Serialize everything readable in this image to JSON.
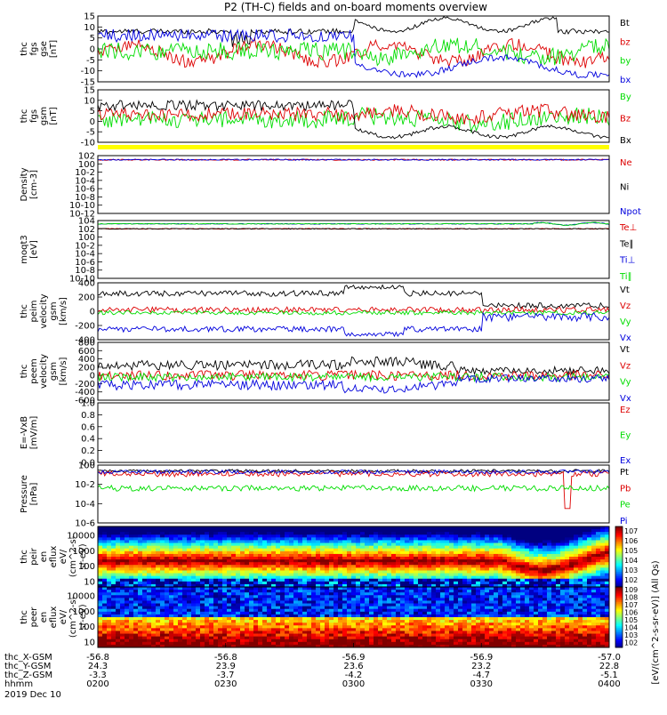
{
  "title": "P2 (TH-C) fields and on-board moments overview",
  "time_ticks": [
    "0200",
    "0230",
    "0300",
    "0330",
    "0400"
  ],
  "footer": {
    "rows": [
      {
        "label": "thc_X-GSM",
        "values": [
          "-56.8",
          "-56.8",
          "-56.9",
          "-56.9",
          "-57.0"
        ]
      },
      {
        "label": "thc_Y-GSM",
        "values": [
          "24.3",
          "23.9",
          "23.6",
          "23.2",
          "22.8"
        ]
      },
      {
        "label": "thc_Z-GSM",
        "values": [
          "-3.3",
          "-3.7",
          "-4.2",
          "-4.7",
          "-5.1"
        ]
      },
      {
        "label": "hhmm",
        "values": [
          "0200",
          "0230",
          "0300",
          "0330",
          "0400"
        ]
      }
    ],
    "date": "2019 Dec 10"
  },
  "colors": {
    "black": "#000000",
    "red": "#dd0000",
    "green": "#00dd00",
    "blue": "#0000dd",
    "yellow": "#ffff00"
  },
  "chart_data": [
    {
      "type": "line",
      "title": "",
      "ylabel": [
        "thc",
        "fgs",
        "gse",
        "[nT]"
      ],
      "ylim": [
        -15,
        15
      ],
      "yticks": [
        "-15",
        "-10",
        "-5",
        "0",
        "5",
        "10",
        "15"
      ],
      "series": [
        {
          "name": "Bt",
          "color": "#000000",
          "pattern": "bt"
        },
        {
          "name": "bz",
          "color": "#dd0000",
          "pattern": "b-z"
        },
        {
          "name": "by",
          "color": "#00dd00",
          "pattern": "b-y"
        },
        {
          "name": "bx",
          "color": "#0000dd",
          "pattern": "b-x"
        }
      ]
    },
    {
      "type": "line",
      "title": "",
      "ylabel": [
        "thc",
        "fgs",
        "gsm",
        "[nT]"
      ],
      "ylim": [
        -15,
        15
      ],
      "yticks": [
        "-10",
        "-5",
        "0",
        "5",
        "10",
        "15"
      ],
      "series": [
        {
          "name": "By",
          "color": "#00dd00",
          "pattern": "gsm-y"
        },
        {
          "name": "Bz",
          "color": "#dd0000",
          "pattern": "gsm-z"
        },
        {
          "name": "Bx",
          "color": "#000000",
          "pattern": "gsm-x"
        }
      ]
    },
    {
      "type": "line",
      "ylabel": [
        "Density",
        "[cm-3]"
      ],
      "ylim": [
        "10^-12",
        "10^2"
      ],
      "yticks": [
        "10^2",
        "10^0",
        "10^-2",
        "10^-4",
        "10^-6",
        "10^-8",
        "10^-10",
        "10^-12"
      ],
      "log": true,
      "series": [
        {
          "name": "Ne",
          "color": "#dd0000",
          "pattern": "dens"
        },
        {
          "name": "Ni",
          "color": "#000000",
          "pattern": "none"
        },
        {
          "name": "Npot",
          "color": "#0000dd",
          "pattern": "dens"
        }
      ]
    },
    {
      "type": "line",
      "ylabel": [
        "moqt3",
        "[eV]"
      ],
      "log": true,
      "yticks": [
        "10^4",
        "10^2",
        "10^0",
        "10^-2",
        "10^-4",
        "10^-6",
        "10^-8",
        "10^-10"
      ],
      "series": [
        {
          "name": "Te⊥",
          "color": "#dd0000",
          "pattern": "temp-low"
        },
        {
          "name": "Te∥",
          "color": "#000000",
          "pattern": "temp-low"
        },
        {
          "name": "Ti⊥",
          "color": "#0000dd",
          "pattern": "temp-high"
        },
        {
          "name": "Ti∥",
          "color": "#00dd00",
          "pattern": "temp-high"
        }
      ]
    },
    {
      "type": "line",
      "ylabel": [
        "thc",
        "peim",
        "velocity",
        "gsm",
        "[km/s]"
      ],
      "ylim": [
        -400,
        400
      ],
      "yticks": [
        "-400",
        "-200",
        "0",
        "200",
        "400"
      ],
      "series": [
        {
          "name": "Vt",
          "color": "#000000",
          "pattern": "vt"
        },
        {
          "name": "Vz",
          "color": "#dd0000",
          "pattern": "v-z"
        },
        {
          "name": "Vy",
          "color": "#00dd00",
          "pattern": "v-y"
        },
        {
          "name": "Vx",
          "color": "#0000dd",
          "pattern": "v-x"
        }
      ]
    },
    {
      "type": "line",
      "ylabel": [
        "thc",
        "peem",
        "velocity",
        "gsm",
        "[km/s]"
      ],
      "ylim": [
        -600,
        800
      ],
      "yticks": [
        "-600",
        "-400",
        "-200",
        "0",
        "200",
        "400",
        "600",
        "800"
      ],
      "series": [
        {
          "name": "Vt",
          "color": "#000000",
          "pattern": "vt-noisy"
        },
        {
          "name": "Vz",
          "color": "#dd0000",
          "pattern": "v-z-noisy"
        },
        {
          "name": "Vy",
          "color": "#00dd00",
          "pattern": "v-y-noisy"
        },
        {
          "name": "Vx",
          "color": "#0000dd",
          "pattern": "v-x-noisy"
        }
      ]
    },
    {
      "type": "line",
      "ylabel": [
        "E=-VxB",
        "[mV/m]"
      ],
      "ylim": [
        0,
        1.0
      ],
      "yticks": [
        "0.0",
        "0.2",
        "0.4",
        "0.6",
        "0.8",
        "1.0"
      ],
      "series": [
        {
          "name": "Ez",
          "color": "#dd0000",
          "pattern": "none"
        },
        {
          "name": "Ey",
          "color": "#00dd00",
          "pattern": "none"
        },
        {
          "name": "Ex",
          "color": "#0000dd",
          "pattern": "none"
        }
      ]
    },
    {
      "type": "line",
      "ylabel": [
        "Pressure",
        "[nPa]"
      ],
      "log": true,
      "yticks": [
        "10^0",
        "10^-2",
        "10^-4",
        "10^-6"
      ],
      "series": [
        {
          "name": "Pt",
          "color": "#000000",
          "pattern": "pt"
        },
        {
          "name": "Pb",
          "color": "#dd0000",
          "pattern": "pb"
        },
        {
          "name": "Pe",
          "color": "#00dd00",
          "pattern": "pe"
        },
        {
          "name": "Pi",
          "color": "#0000dd",
          "pattern": "pi"
        }
      ]
    },
    {
      "type": "heatmap",
      "ylabel": [
        "thc",
        "peir",
        "en",
        "eflux",
        "eV/",
        "(cm^2-s-",
        "sr-eV)"
      ],
      "yticks": [
        "10000",
        "1000",
        "100",
        "10"
      ],
      "pattern": "ion"
    },
    {
      "type": "heatmap",
      "ylabel": [
        "thc",
        "peer",
        "en",
        "eflux",
        "eV/",
        "(cm^2-s-",
        "sr-eV)"
      ],
      "yticks": [
        "10000",
        "1000",
        "100",
        "10"
      ],
      "pattern": "electron"
    }
  ],
  "colorbar": {
    "label": "[eV/(cm^2-s-sr-eV)] (All Qs)",
    "ticks_top": [
      "10^7",
      "10^6",
      "10^5",
      "10^4",
      "10^3",
      "10^2"
    ],
    "ticks_bottom": [
      "10^9",
      "10^8",
      "10^7",
      "10^6",
      "10^5",
      "10^4",
      "10^3",
      "10^2"
    ]
  }
}
